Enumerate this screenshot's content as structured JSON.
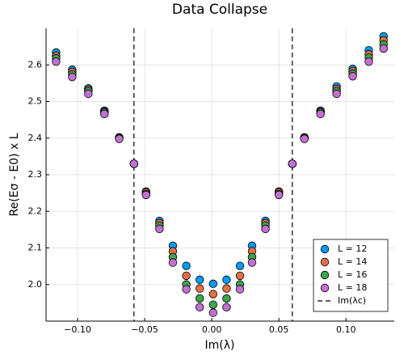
{
  "chart_data": {
    "type": "scatter",
    "title": "Data Collapse",
    "xlabel": "Im(λ)",
    "ylabel": "Re(Eσ - E0) x L",
    "x": [
      -0.116,
      -0.104,
      -0.092,
      -0.08,
      -0.069,
      -0.058,
      -0.049,
      -0.039,
      -0.029,
      -0.019,
      -0.009,
      0.001,
      0.011,
      0.021,
      0.03,
      0.04,
      0.05,
      0.06,
      0.069,
      0.081,
      0.093,
      0.105,
      0.117,
      0.128
    ],
    "series": [
      {
        "name": "L = 12",
        "color": "#009af9",
        "values": [
          2.634,
          2.587,
          2.536,
          2.475,
          2.402,
          2.33,
          2.254,
          2.174,
          2.106,
          2.051,
          2.013,
          2.002,
          2.013,
          2.051,
          2.106,
          2.174,
          2.254,
          2.33,
          2.402,
          2.475,
          2.541,
          2.589,
          2.64,
          2.678
        ]
      },
      {
        "name": "L = 14",
        "color": "#e26f46",
        "values": [
          2.625,
          2.581,
          2.532,
          2.472,
          2.4,
          2.33,
          2.252,
          2.168,
          2.091,
          2.024,
          1.989,
          1.974,
          1.989,
          2.024,
          2.091,
          2.168,
          2.252,
          2.33,
          2.4,
          2.472,
          2.534,
          2.583,
          2.629,
          2.667
        ]
      },
      {
        "name": "L = 16",
        "color": "#3ea44e",
        "values": [
          2.618,
          2.574,
          2.528,
          2.47,
          2.4,
          2.33,
          2.247,
          2.161,
          2.075,
          2.0,
          1.962,
          1.945,
          1.962,
          2.0,
          2.075,
          2.161,
          2.247,
          2.33,
          2.4,
          2.47,
          2.528,
          2.576,
          2.62,
          2.656
        ]
      },
      {
        "name": "L = 18",
        "color": "#c271d2",
        "values": [
          2.609,
          2.567,
          2.521,
          2.466,
          2.398,
          2.33,
          2.245,
          2.152,
          2.06,
          1.987,
          1.938,
          1.923,
          1.938,
          1.987,
          2.06,
          2.152,
          2.245,
          2.33,
          2.398,
          2.466,
          2.521,
          2.569,
          2.609,
          2.645
        ]
      }
    ],
    "vlines": {
      "name": "Im(λc)",
      "color": "#000000",
      "values": [
        -0.058,
        0.06
      ]
    },
    "xlim": [
      -0.1235,
      0.136
    ],
    "ylim": [
      1.9,
      2.7
    ],
    "xticks": [
      {
        "value": -0.1,
        "label": "−0.10"
      },
      {
        "value": -0.05,
        "label": "−0.05"
      },
      {
        "value": 0,
        "label": "0.00"
      },
      {
        "value": 0.05,
        "label": "0.05"
      },
      {
        "value": 0.1,
        "label": "0.10"
      }
    ],
    "yticks": [
      {
        "value": 2.0,
        "label": "2.0"
      },
      {
        "value": 2.1,
        "label": "2.1"
      },
      {
        "value": 2.2,
        "label": "2.2"
      },
      {
        "value": 2.3,
        "label": "2.3"
      },
      {
        "value": 2.4,
        "label": "2.4"
      },
      {
        "value": 2.5,
        "label": "2.5"
      },
      {
        "value": 2.6,
        "label": "2.6"
      }
    ],
    "grid": true,
    "legend": "bottom-right"
  }
}
